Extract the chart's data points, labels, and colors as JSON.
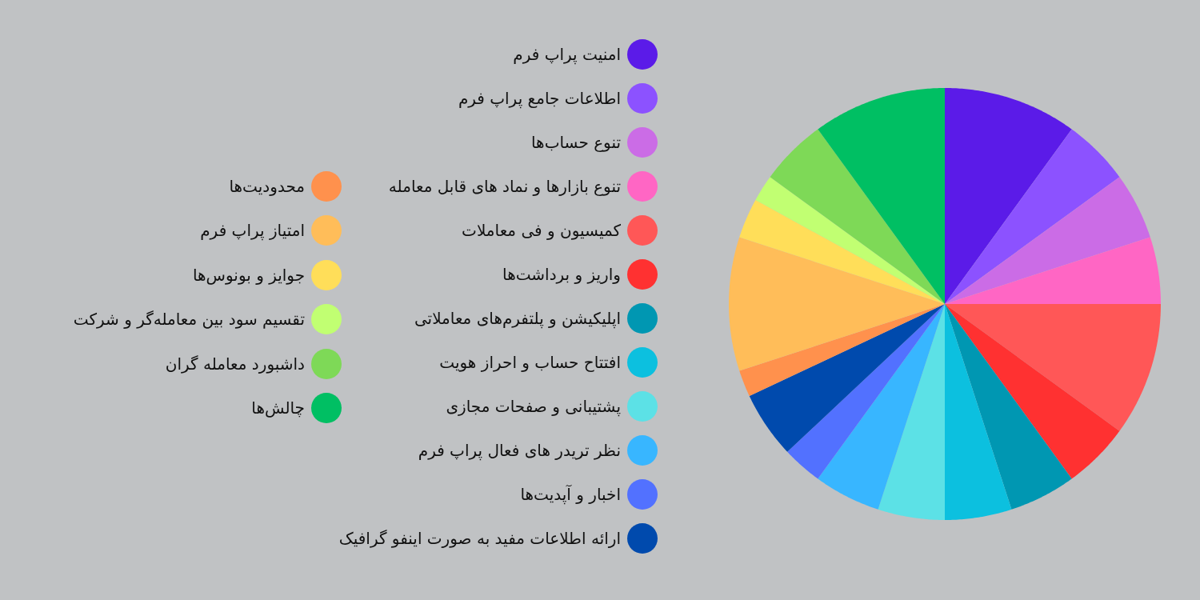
{
  "chart_data": {
    "type": "pie",
    "categories": [
      "امنیت پراپ فرم",
      "اطلاعات جامع پراپ فرم",
      "تنوع حساب‌ها",
      "تنوع بازارها و نماد های قابل معامله",
      "کمیسیون و فی معاملات",
      "واریز و برداشت‌ها",
      "اپلیکیشن و پلتفرم‌های معاملاتی",
      "افتتاح حساب و احراز هویت",
      "پشتیبانی و صفحات مجازی",
      "نظر تریدر های فعال پراپ فرم",
      "اخبار و آپدیت‌ها",
      "ارائه اطلاعات مفید به صورت اینفو گرافیک",
      "محدودیت‌ها",
      "امتیاز پراپ فرم",
      "جوایز و بونوس‌ها",
      "تقسیم سود بین معامله‌گر و شرکت",
      "داشبورد معامله گران",
      "چالش‌ها"
    ],
    "values": [
      10,
      5,
      5,
      5,
      10,
      5,
      5,
      5,
      5,
      5,
      3,
      5,
      2,
      10,
      3,
      2,
      5,
      10
    ],
    "colors": [
      "#5b1be8",
      "#8c52ff",
      "#cb6ce6",
      "#ff66c4",
      "#ff5757",
      "#ff3131",
      "#0097b2",
      "#0cc0df",
      "#5ce1e6",
      "#38b6ff",
      "#5271ff",
      "#004aad",
      "#ff914d",
      "#ffbd59",
      "#ffde59",
      "#c1ff72",
      "#7ed957",
      "#00bf63"
    ],
    "legend": "left"
  }
}
